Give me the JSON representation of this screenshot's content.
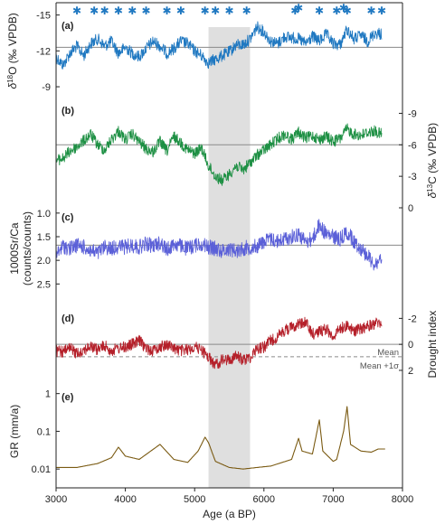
{
  "chart_data": {
    "type": "line",
    "x_axis": {
      "label": "Age (a BP)",
      "range": [
        3000,
        8000
      ],
      "ticks": [
        3000,
        4000,
        5000,
        6000,
        7000,
        8000
      ]
    },
    "shaded_interval": [
      5200,
      5800
    ],
    "dating_markers": [
      3300,
      3550,
      3700,
      3900,
      4100,
      4300,
      4600,
      4800,
      5150,
      5300,
      5500,
      5750,
      6450,
      6500,
      6800,
      7050,
      7150,
      7200,
      7550,
      7700
    ],
    "panels": [
      {
        "label": "(a)",
        "ylabel": "δ18O (‰ VPDB)",
        "ylabel_parts": {
          "delta": "δ",
          "sup": "18",
          "rest": "O (‰ VPDB)"
        },
        "ylabel_side": "left",
        "ticks": [
          -15,
          -12,
          -9
        ],
        "tick_labels": [
          "-15",
          "-12",
          "-9"
        ],
        "range": [
          -15.5,
          -8.7
        ],
        "reference_line": -12.3,
        "color": "#1f78c1",
        "series_points": [
          [
            3000,
            -11.5
          ],
          [
            3100,
            -10.8
          ],
          [
            3200,
            -11.8
          ],
          [
            3300,
            -12.4
          ],
          [
            3400,
            -11.6
          ],
          [
            3500,
            -12.6
          ],
          [
            3600,
            -13.0
          ],
          [
            3700,
            -12.4
          ],
          [
            3800,
            -12.8
          ],
          [
            3900,
            -11.8
          ],
          [
            4000,
            -12.3
          ],
          [
            4100,
            -11.8
          ],
          [
            4200,
            -11.5
          ],
          [
            4300,
            -12.2
          ],
          [
            4400,
            -12.8
          ],
          [
            4500,
            -12.4
          ],
          [
            4600,
            -11.8
          ],
          [
            4700,
            -12.2
          ],
          [
            4800,
            -12.8
          ],
          [
            4900,
            -12.6
          ],
          [
            5000,
            -12.0
          ],
          [
            5100,
            -11.6
          ],
          [
            5200,
            -11.0
          ],
          [
            5300,
            -11.3
          ],
          [
            5400,
            -11.6
          ],
          [
            5500,
            -11.9
          ],
          [
            5600,
            -12.5
          ],
          [
            5700,
            -12.5
          ],
          [
            5800,
            -13.0
          ],
          [
            5900,
            -14.0
          ],
          [
            6000,
            -13.6
          ],
          [
            6100,
            -12.8
          ],
          [
            6200,
            -12.6
          ],
          [
            6300,
            -13.2
          ],
          [
            6400,
            -13.1
          ],
          [
            6500,
            -13.0
          ],
          [
            6600,
            -12.6
          ],
          [
            6700,
            -13.2
          ],
          [
            6800,
            -12.8
          ],
          [
            6900,
            -13.4
          ],
          [
            7000,
            -12.6
          ],
          [
            7100,
            -12.5
          ],
          [
            7200,
            -13.8
          ],
          [
            7300,
            -13.0
          ],
          [
            7400,
            -13.3
          ],
          [
            7500,
            -12.8
          ],
          [
            7600,
            -13.5
          ],
          [
            7700,
            -13.4
          ]
        ],
        "noise": 0.5
      },
      {
        "label": "(b)",
        "ylabel": "δ13C (‰ VPDB)",
        "ylabel_parts": {
          "delta": "δ",
          "sup": "13",
          "rest": "C (‰ VPDB)"
        },
        "ylabel_side": "right",
        "ticks": [
          -9,
          -6,
          -3,
          0
        ],
        "tick_labels": [
          "-9",
          "-6",
          "-3",
          "0"
        ],
        "range": [
          -10.5,
          0
        ],
        "reference_line": -6,
        "color": "#1e9044",
        "series_points": [
          [
            3000,
            -4.5
          ],
          [
            3100,
            -4.7
          ],
          [
            3200,
            -5.4
          ],
          [
            3300,
            -5.8
          ],
          [
            3400,
            -6.4
          ],
          [
            3500,
            -7.0
          ],
          [
            3600,
            -6.0
          ],
          [
            3700,
            -5.5
          ],
          [
            3800,
            -6.5
          ],
          [
            3900,
            -7.3
          ],
          [
            4000,
            -6.5
          ],
          [
            4100,
            -7.0
          ],
          [
            4200,
            -6.3
          ],
          [
            4300,
            -5.6
          ],
          [
            4400,
            -5.3
          ],
          [
            4500,
            -6.3
          ],
          [
            4600,
            -5.4
          ],
          [
            4700,
            -6.8
          ],
          [
            4800,
            -6.2
          ],
          [
            4900,
            -5.5
          ],
          [
            5000,
            -5.2
          ],
          [
            5100,
            -5.7
          ],
          [
            5200,
            -4.0
          ],
          [
            5300,
            -3.0
          ],
          [
            5400,
            -2.6
          ],
          [
            5500,
            -3.2
          ],
          [
            5600,
            -4.0
          ],
          [
            5700,
            -3.6
          ],
          [
            5800,
            -4.3
          ],
          [
            5900,
            -5.0
          ],
          [
            6000,
            -5.5
          ],
          [
            6100,
            -6.0
          ],
          [
            6200,
            -6.6
          ],
          [
            6300,
            -7.0
          ],
          [
            6400,
            -6.5
          ],
          [
            6500,
            -7.2
          ],
          [
            6600,
            -6.6
          ],
          [
            6700,
            -6.9
          ],
          [
            6800,
            -6.5
          ],
          [
            6900,
            -6.8
          ],
          [
            7000,
            -6.3
          ],
          [
            7100,
            -6.6
          ],
          [
            7200,
            -7.5
          ],
          [
            7300,
            -7.0
          ],
          [
            7400,
            -6.9
          ],
          [
            7500,
            -7.2
          ],
          [
            7600,
            -7.3
          ],
          [
            7700,
            -7.0
          ]
        ],
        "noise": 0.55
      },
      {
        "label": "(c)",
        "ylabel": "1000Sr/Ca",
        "ylabel2": "(counts/counts)",
        "ylabel_side": "left",
        "ticks": [
          1.0,
          1.5,
          2.0,
          2.5
        ],
        "tick_labels": [
          "1.0",
          "1.5",
          "2.0",
          "2.5"
        ],
        "range": [
          0.85,
          2.8
        ],
        "reference_line": 1.68,
        "color": "#5b60d8",
        "series_points": [
          [
            3000,
            1.9
          ],
          [
            3100,
            1.7
          ],
          [
            3200,
            1.75
          ],
          [
            3300,
            1.68
          ],
          [
            3400,
            1.72
          ],
          [
            3500,
            1.8
          ],
          [
            3600,
            1.85
          ],
          [
            3700,
            1.72
          ],
          [
            3800,
            1.75
          ],
          [
            3900,
            1.7
          ],
          [
            4000,
            1.72
          ],
          [
            4100,
            1.68
          ],
          [
            4200,
            1.72
          ],
          [
            4300,
            1.65
          ],
          [
            4400,
            1.7
          ],
          [
            4500,
            1.62
          ],
          [
            4600,
            1.78
          ],
          [
            4700,
            1.65
          ],
          [
            4800,
            1.7
          ],
          [
            4900,
            1.75
          ],
          [
            5000,
            1.68
          ],
          [
            5100,
            1.65
          ],
          [
            5200,
            1.72
          ],
          [
            5300,
            1.75
          ],
          [
            5400,
            1.8
          ],
          [
            5500,
            1.75
          ],
          [
            5600,
            1.8
          ],
          [
            5700,
            1.75
          ],
          [
            5800,
            1.72
          ],
          [
            5900,
            1.7
          ],
          [
            6000,
            1.6
          ],
          [
            6100,
            1.55
          ],
          [
            6200,
            1.6
          ],
          [
            6300,
            1.55
          ],
          [
            6400,
            1.5
          ],
          [
            6500,
            1.45
          ],
          [
            6600,
            1.6
          ],
          [
            6700,
            1.55
          ],
          [
            6800,
            1.25
          ],
          [
            6900,
            1.45
          ],
          [
            7000,
            1.5
          ],
          [
            7100,
            1.55
          ],
          [
            7200,
            1.4
          ],
          [
            7300,
            1.6
          ],
          [
            7400,
            1.75
          ],
          [
            7500,
            1.9
          ],
          [
            7600,
            2.1
          ],
          [
            7700,
            1.95
          ]
        ],
        "noise": 0.16
      },
      {
        "label": "(d)",
        "ylabel": "Drought index",
        "ylabel_side": "right",
        "ticks": [
          -2,
          0,
          2
        ],
        "tick_labels": [
          "-2",
          "0",
          "2"
        ],
        "range": [
          -3,
          2.7
        ],
        "reference_line": 0,
        "reference_line_label": "Mean",
        "threshold_line": 0.95,
        "threshold_line_label": "Mean +1σ",
        "color": "#b5202a",
        "series_points": [
          [
            3000,
            0.5
          ],
          [
            3100,
            0.6
          ],
          [
            3200,
            0.3
          ],
          [
            3300,
            0.7
          ],
          [
            3400,
            0.4
          ],
          [
            3500,
            0.2
          ],
          [
            3600,
            0.4
          ],
          [
            3700,
            0.1
          ],
          [
            3800,
            0.5
          ],
          [
            3900,
            0.3
          ],
          [
            4000,
            0.2
          ],
          [
            4100,
            0.0
          ],
          [
            4200,
            -0.3
          ],
          [
            4300,
            0.3
          ],
          [
            4400,
            0.5
          ],
          [
            4500,
            0.2
          ],
          [
            4600,
            0.0
          ],
          [
            4700,
            0.3
          ],
          [
            4800,
            0.5
          ],
          [
            4900,
            0.4
          ],
          [
            5000,
            0.2
          ],
          [
            5100,
            0.4
          ],
          [
            5200,
            1.0
          ],
          [
            5300,
            1.6
          ],
          [
            5400,
            1.2
          ],
          [
            5500,
            1.2
          ],
          [
            5600,
            0.9
          ],
          [
            5700,
            1.2
          ],
          [
            5800,
            1.0
          ],
          [
            5900,
            0.3
          ],
          [
            6000,
            0.2
          ],
          [
            6100,
            -0.3
          ],
          [
            6200,
            -0.6
          ],
          [
            6300,
            -1.1
          ],
          [
            6400,
            -1.3
          ],
          [
            6500,
            -1.6
          ],
          [
            6600,
            -1.7
          ],
          [
            6700,
            -0.8
          ],
          [
            6800,
            -1.0
          ],
          [
            6900,
            -1.2
          ],
          [
            7000,
            -0.6
          ],
          [
            7100,
            -1.2
          ],
          [
            7200,
            -1.5
          ],
          [
            7300,
            -1.0
          ],
          [
            7400,
            -1.2
          ],
          [
            7500,
            -1.4
          ],
          [
            7600,
            -1.6
          ],
          [
            7700,
            -1.7
          ]
        ],
        "noise": 0.45
      },
      {
        "label": "(e)",
        "ylabel": "GR (mm/a)",
        "ylabel_side": "left",
        "scale": "log",
        "ticks": [
          0.01,
          0.1,
          1
        ],
        "tick_labels": [
          "0.01",
          "0.1",
          "1"
        ],
        "range": [
          0.0055,
          1.8
        ],
        "color": "#7a5a12",
        "series_points": [
          [
            3000,
            0.011
          ],
          [
            3300,
            0.011
          ],
          [
            3600,
            0.014
          ],
          [
            3800,
            0.02
          ],
          [
            3900,
            0.038
          ],
          [
            4000,
            0.022
          ],
          [
            4200,
            0.018
          ],
          [
            4500,
            0.045
          ],
          [
            4700,
            0.018
          ],
          [
            4900,
            0.015
          ],
          [
            5050,
            0.03
          ],
          [
            5150,
            0.07
          ],
          [
            5200,
            0.05
          ],
          [
            5300,
            0.016
          ],
          [
            5500,
            0.011
          ],
          [
            5700,
            0.01
          ],
          [
            5900,
            0.011
          ],
          [
            6100,
            0.012
          ],
          [
            6400,
            0.018
          ],
          [
            6500,
            0.065
          ],
          [
            6550,
            0.03
          ],
          [
            6700,
            0.025
          ],
          [
            6800,
            0.2
          ],
          [
            6850,
            0.03
          ],
          [
            7000,
            0.016
          ],
          [
            7050,
            0.018
          ],
          [
            7150,
            0.1
          ],
          [
            7200,
            0.45
          ],
          [
            7250,
            0.045
          ],
          [
            7400,
            0.03
          ],
          [
            7550,
            0.028
          ],
          [
            7650,
            0.034
          ],
          [
            7750,
            0.034
          ]
        ],
        "noise": 0
      }
    ]
  }
}
